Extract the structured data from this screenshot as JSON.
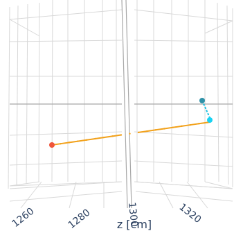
{
  "chart_data": {
    "type": "scatter3d",
    "axis": {
      "title": "z [cm]",
      "ticks": [
        "1260",
        "1280",
        "1300",
        "1320"
      ]
    },
    "colors": {
      "track": "#f2a11a",
      "start_point": "#ef553b",
      "end_point": "#19d3f3",
      "kink_point": "#2e91a8",
      "kink_line": "#19c0e0"
    },
    "series": [
      {
        "z": [
          1258,
          1262,
          1266,
          1270,
          1274,
          1278,
          1282,
          1286,
          1290,
          1294,
          1298,
          1302,
          1306,
          1310,
          1314,
          1318,
          1322,
          1326,
          1330,
          1331
        ]
      }
    ],
    "points": [
      {
        "z": 1258
      },
      {
        "z": 1331
      },
      {
        "z": 1329
      }
    ]
  }
}
